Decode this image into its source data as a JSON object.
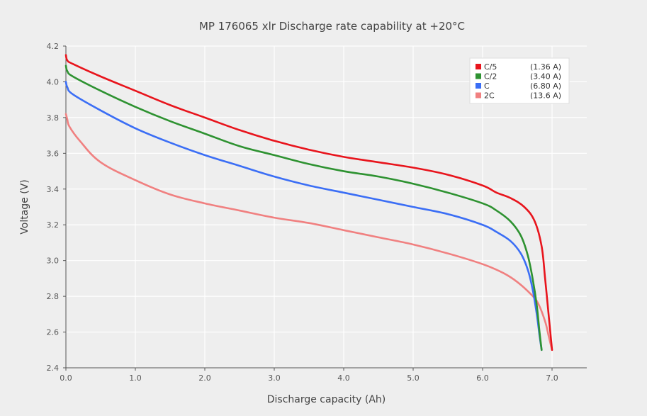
{
  "chart_data": {
    "type": "line",
    "title": "MP 176065 xlr Discharge rate capability at +20°C",
    "xlabel": "Discharge capacity (Ah)",
    "ylabel": "Voltage (V)",
    "xlim": [
      0,
      7.5
    ],
    "ylim": [
      2.4,
      4.2
    ],
    "x_ticks": [
      "0.0",
      "1.0",
      "2.0",
      "3.0",
      "4.0",
      "5.0",
      "6.0",
      "7.0"
    ],
    "y_ticks": [
      "2.4",
      "2.6",
      "2.8",
      "3.0",
      "3.2",
      "3.4",
      "3.6",
      "3.8",
      "4.0",
      "4.2"
    ],
    "grid": true,
    "legend_position": "top-right",
    "series": [
      {
        "name": "C/5",
        "current": "(1.36 A)",
        "color": "#e8141c",
        "x": [
          0,
          0.02,
          0.1,
          0.5,
          1.0,
          1.5,
          2.0,
          2.5,
          3.0,
          3.5,
          4.0,
          4.5,
          5.0,
          5.5,
          6.0,
          6.2,
          6.4,
          6.6,
          6.75,
          6.85,
          6.9,
          6.95,
          7.0
        ],
        "y": [
          4.15,
          4.12,
          4.1,
          4.03,
          3.95,
          3.87,
          3.8,
          3.73,
          3.67,
          3.62,
          3.58,
          3.55,
          3.52,
          3.48,
          3.42,
          3.38,
          3.35,
          3.3,
          3.22,
          3.08,
          2.9,
          2.7,
          2.5
        ]
      },
      {
        "name": "C/2",
        "current": "(3.40 A)",
        "color": "#2e9231",
        "x": [
          0,
          0.02,
          0.1,
          0.5,
          1.0,
          1.5,
          2.0,
          2.5,
          3.0,
          3.5,
          4.0,
          4.5,
          5.0,
          5.5,
          6.0,
          6.2,
          6.4,
          6.55,
          6.65,
          6.72,
          6.78,
          6.82,
          6.85
        ],
        "y": [
          4.09,
          4.06,
          4.03,
          3.95,
          3.86,
          3.78,
          3.71,
          3.64,
          3.59,
          3.54,
          3.5,
          3.47,
          3.43,
          3.38,
          3.32,
          3.28,
          3.22,
          3.14,
          3.03,
          2.9,
          2.75,
          2.6,
          2.5
        ]
      },
      {
        "name": "C",
        "current": "(6.80 A)",
        "color": "#3b6ef5",
        "x": [
          0,
          0.02,
          0.1,
          0.5,
          1.0,
          1.5,
          2.0,
          2.5,
          3.0,
          3.5,
          4.0,
          4.5,
          5.0,
          5.5,
          6.0,
          6.2,
          6.4,
          6.55,
          6.65,
          6.72,
          6.78,
          6.82,
          6.85
        ],
        "y": [
          4.0,
          3.97,
          3.93,
          3.84,
          3.74,
          3.66,
          3.59,
          3.53,
          3.47,
          3.42,
          3.38,
          3.34,
          3.3,
          3.26,
          3.2,
          3.16,
          3.11,
          3.04,
          2.95,
          2.84,
          2.7,
          2.58,
          2.5
        ]
      },
      {
        "name": "2C",
        "current": "(13.6 A)",
        "color": "#f08080",
        "x": [
          0,
          0.02,
          0.05,
          0.2,
          0.5,
          1.0,
          1.5,
          2.0,
          2.5,
          3.0,
          3.5,
          4.0,
          4.5,
          5.0,
          5.5,
          6.0,
          6.3,
          6.5,
          6.7,
          6.8,
          6.9,
          6.95,
          7.0
        ],
        "y": [
          3.82,
          3.79,
          3.75,
          3.67,
          3.55,
          3.45,
          3.37,
          3.32,
          3.28,
          3.24,
          3.21,
          3.17,
          3.13,
          3.09,
          3.04,
          2.98,
          2.93,
          2.88,
          2.81,
          2.76,
          2.66,
          2.58,
          2.5
        ]
      }
    ]
  }
}
